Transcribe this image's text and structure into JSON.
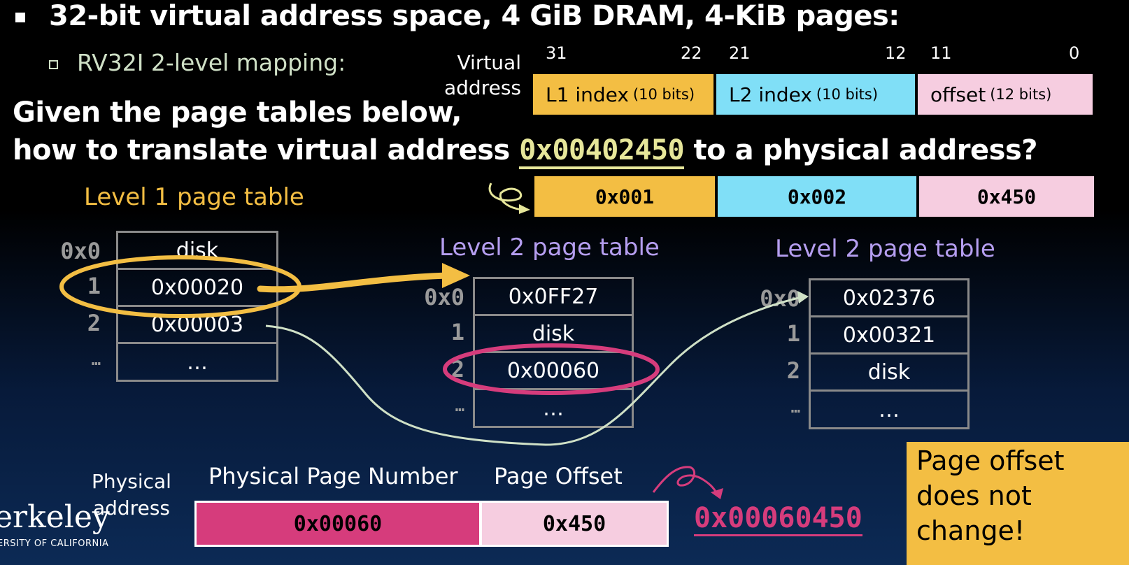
{
  "header": {
    "bullet_title": "32-bit virtual address space, 4 GiB DRAM, 4-KiB pages:",
    "sub_bullet": "RV32I 2-level mapping:",
    "question_line1": "Given the page tables below,",
    "question_line2_pre": "how to translate virtual address",
    "question_address": "0x00402450",
    "question_line2_post": "to a physical address?"
  },
  "virtual_address": {
    "label_line1": "Virtual",
    "label_line2": "address",
    "bits": [
      "31",
      "22",
      "21",
      "12",
      "11",
      "0"
    ],
    "fields": [
      {
        "name": "L1 index",
        "size": "(10 bits)",
        "value": "0x001",
        "color": "#f3be43"
      },
      {
        "name": "L2 index",
        "size": "(10 bits)",
        "value": "0x002",
        "color": "#80dff7"
      },
      {
        "name": "offset",
        "size": "(12 bits)",
        "value": "0x450",
        "color": "#f6cde0"
      }
    ]
  },
  "level1_table": {
    "title": "Level 1 page table",
    "indices": [
      "0x0",
      "1",
      "2",
      "…"
    ],
    "entries": [
      "disk",
      "0x00020",
      "0x00003",
      "…"
    ]
  },
  "level2_table_a": {
    "title": "Level 2 page table",
    "indices": [
      "0x0",
      "1",
      "2",
      "…"
    ],
    "entries": [
      "0x0FF27",
      "disk",
      "0x00060",
      "…"
    ]
  },
  "level2_table_b": {
    "title": "Level 2 page table",
    "indices": [
      "0x0",
      "1",
      "2",
      "…"
    ],
    "entries": [
      "0x02376",
      "0x00321",
      "disk",
      "…"
    ]
  },
  "physical_address": {
    "label_line1": "Physical",
    "label_line2": "address",
    "ppn_header": "Physical Page Number",
    "offset_header": "Page Offset",
    "ppn_value": "0x00060",
    "offset_value": "0x450",
    "result": "0x00060450"
  },
  "callout": {
    "line1": "Page offset",
    "line2": "does not",
    "line3": "change!"
  },
  "logo": {
    "text": "erkeley",
    "sub": "ERSITY OF CALIFORNIA"
  },
  "colors": {
    "l1_title": "#f3be43",
    "l2_title": "#b59ef0",
    "highlight_l1": "#f3be43",
    "highlight_l2": "#d63c7c",
    "ppn_fill": "#d63c7c",
    "offset_fill": "#f6cde0"
  }
}
